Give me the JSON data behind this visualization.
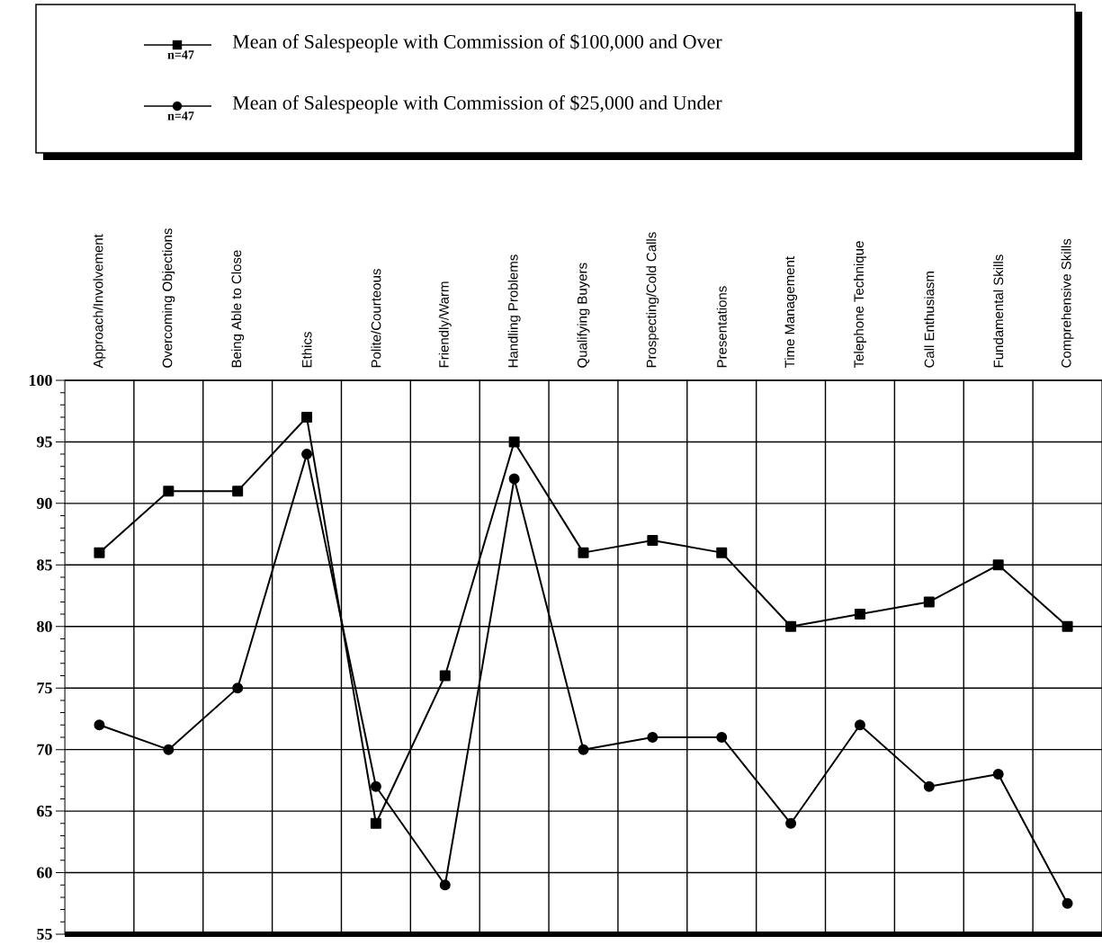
{
  "chart_data": {
    "type": "line",
    "categories": [
      "Approach/Involvement",
      "Overcoming Objections",
      "Being Able to Close",
      "Ethics",
      "Polite/Courteous",
      "Friendly/Warm",
      "Handling Problems",
      "Qualifying Buyers",
      "Prospecting/Cold Calls",
      "Presentations",
      "Time Management",
      "Telephone Technique",
      "Call Enthusiasm",
      "Fundamental Skills",
      "Comprehensive Skills"
    ],
    "series": [
      {
        "name": "Mean of Salespeople with Commission of $100,000 and Over",
        "color": "#000000",
        "marker": "square",
        "values": [
          86,
          91,
          91,
          97,
          64,
          76,
          95,
          86,
          87,
          86,
          80,
          81,
          82,
          85,
          80
        ]
      },
      {
        "name": "Mean of Salespeople with Commission of $25,000 and Under",
        "color": "#000000",
        "marker": "circle",
        "values": [
          72,
          70,
          75,
          94,
          67,
          59,
          92,
          70,
          71,
          71,
          64,
          72,
          67,
          68,
          57.5
        ]
      }
    ],
    "annotations": [
      "n=47",
      "n=47"
    ],
    "ylim": [
      55,
      100
    ],
    "yticks": [
      55,
      60,
      65,
      70,
      75,
      80,
      85,
      90,
      95,
      100
    ],
    "grid": true,
    "legend": "top",
    "line_style": "solid"
  }
}
